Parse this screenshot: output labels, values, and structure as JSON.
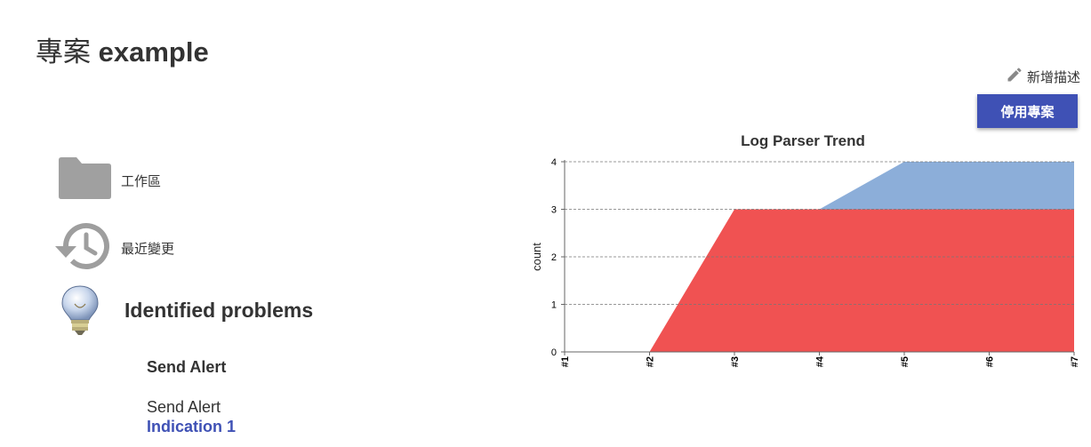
{
  "page": {
    "title_prefix": "專案",
    "title_name": "example"
  },
  "actions": {
    "add_description": "新增描述",
    "add_description_icon": "pencil-icon",
    "disable_project": "停用專案",
    "accent_color": "#3f51b5"
  },
  "side_links": [
    {
      "label": "工作區",
      "icon": "folder-icon"
    },
    {
      "label": "最近變更",
      "icon": "history-icon"
    }
  ],
  "problems": {
    "heading": "Identified problems",
    "icon": "lightbulb-icon",
    "items": [
      {
        "heading": "Send Alert",
        "text": "Send Alert",
        "link": "Indication 1"
      }
    ]
  },
  "chart_data": {
    "type": "area",
    "title": "Log Parser Trend",
    "xlabel": "",
    "ylabel": "count",
    "categories": [
      "#1",
      "#2",
      "#3",
      "#4",
      "#5",
      "#6",
      "#7"
    ],
    "ylim": [
      0,
      4
    ],
    "yticks": [
      0,
      1,
      2,
      3,
      4
    ],
    "grid": true,
    "stacked": true,
    "series": [
      {
        "values": [
          0,
          0,
          3,
          3,
          3,
          3,
          3
        ],
        "color": "#f05252"
      },
      {
        "values": [
          0,
          0,
          0,
          0,
          1,
          1,
          1
        ],
        "color": "#8caed9"
      }
    ]
  }
}
